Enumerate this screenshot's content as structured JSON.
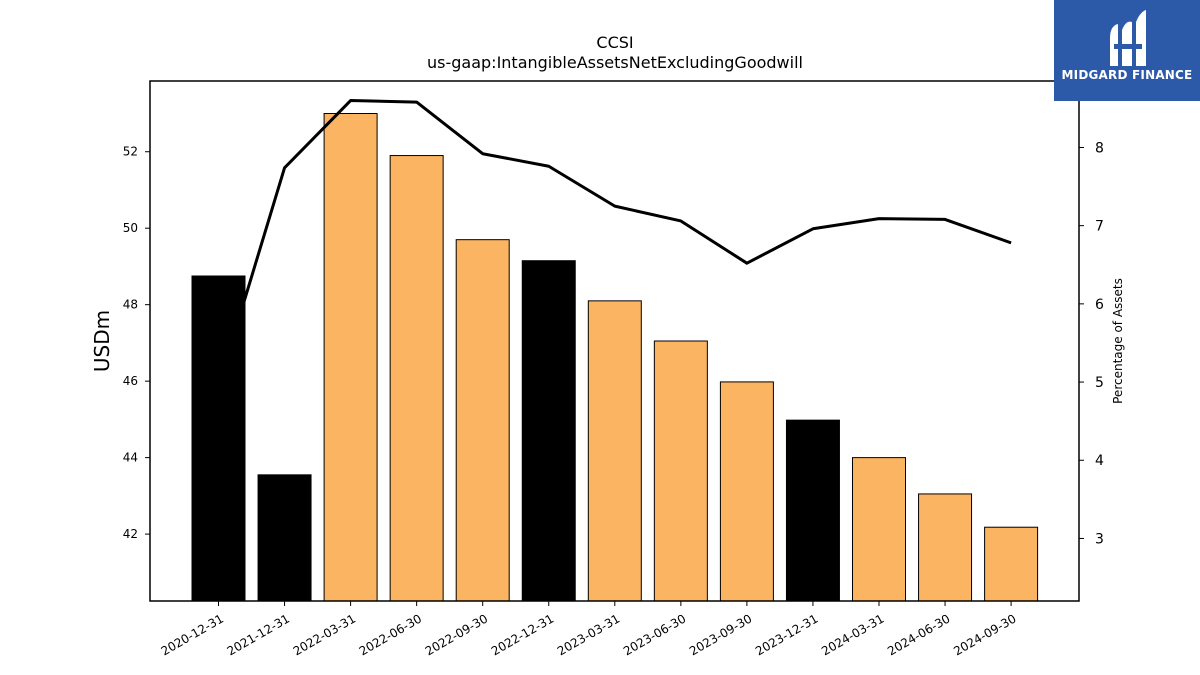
{
  "chart_data": {
    "type": "bar",
    "title": "CCSI",
    "subtitle": "us-gaap:IntangibleAssetsNetExcludingGoodwill",
    "ylabel": "USDm",
    "y2label": "Percentage of Assets",
    "categories": [
      "2020-12-31",
      "2021-12-31",
      "2022-03-31",
      "2022-06-30",
      "2022-09-30",
      "2022-12-31",
      "2023-03-31",
      "2023-06-30",
      "2023-09-30",
      "2023-12-31",
      "2024-03-31",
      "2024-06-30",
      "2024-09-30"
    ],
    "series": [
      {
        "type": "bar",
        "values": [
          48.75,
          43.55,
          53.0,
          51.9,
          49.7,
          49.15,
          48.1,
          47.05,
          45.98,
          44.98,
          44.0,
          43.05,
          42.18
        ],
        "colors": [
          "#000000",
          "#000000",
          "#fbb462",
          "#fbb462",
          "#fbb462",
          "#000000",
          "#fbb462",
          "#fbb462",
          "#fbb462",
          "#000000",
          "#fbb462",
          "#fbb462",
          "#fbb462"
        ]
      },
      {
        "type": "line",
        "axis": "right",
        "values": [
          4.95,
          7.74,
          8.6,
          8.58,
          7.92,
          7.76,
          7.25,
          7.06,
          6.52,
          6.96,
          7.09,
          7.08,
          6.78
        ],
        "color": "#000000"
      }
    ],
    "ylim": [
      40.25,
      53.85
    ],
    "y2lim": [
      2.2,
      8.85
    ],
    "yticks": [
      42,
      44,
      46,
      48,
      50,
      52
    ],
    "y2ticks": [
      3,
      4,
      5,
      6,
      7,
      8
    ],
    "grid": false
  },
  "logo": {
    "text": "MIDGARD FINANCE",
    "color": "#2d5aa8"
  }
}
